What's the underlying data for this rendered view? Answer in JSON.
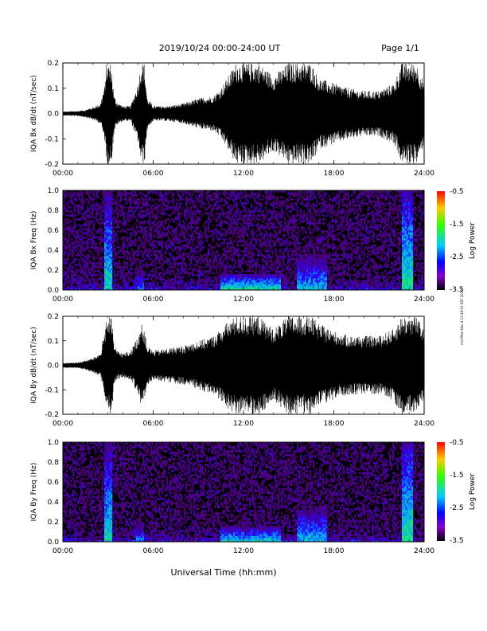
{
  "header": {
    "date_range": "2019/10/24  00:00-24:00 UT",
    "page": "Page 1/1"
  },
  "x_axis_title": "Universal Time (hh:mm)",
  "x_ticks": [
    "00:00",
    "06:00",
    "12:00",
    "18:00",
    "24:00"
  ],
  "side_note": "mdl Mon Nov 4 13:16:01 EST 2019",
  "colorbar": {
    "label": "Log Power",
    "ticks": [
      "-0.5",
      "-1.5",
      "-2.5",
      "-3.5"
    ],
    "colors": [
      "#ff0000",
      "#ffcc00",
      "#33ff00",
      "#00ccff",
      "#0000ff",
      "#8800cc",
      "#000000"
    ]
  },
  "chart_data": [
    {
      "type": "line",
      "ylabel": "IQA Bx dB/dt (nT/sec)",
      "x_range_hours": [
        0,
        24
      ],
      "ylim": [
        -0.2,
        0.2
      ],
      "y_ticks": [
        "0.2",
        "0.1",
        "0.0",
        "-0.1",
        "-0.2"
      ],
      "envelope": {
        "hours": [
          0,
          1,
          1.5,
          2,
          2.5,
          2.8,
          2.9,
          3.0,
          3.2,
          3.4,
          3.6,
          4.0,
          4.5,
          5.0,
          5.2,
          5.4,
          5.6,
          6.0,
          7.0,
          8.0,
          9.0,
          10.0,
          10.5,
          11.0,
          11.5,
          12.0,
          13.0,
          14.0,
          15.0,
          16.0,
          16.5,
          17.0,
          18.0,
          19.0,
          20.0,
          21.0,
          22.0,
          22.5,
          22.8,
          23.0,
          23.5,
          24.0
        ],
        "amplitude": [
          0.008,
          0.01,
          0.015,
          0.025,
          0.04,
          0.12,
          0.2,
          0.2,
          0.2,
          0.07,
          0.045,
          0.03,
          0.03,
          0.12,
          0.2,
          0.2,
          0.06,
          0.03,
          0.03,
          0.04,
          0.06,
          0.07,
          0.1,
          0.15,
          0.2,
          0.2,
          0.2,
          0.15,
          0.2,
          0.2,
          0.2,
          0.14,
          0.12,
          0.1,
          0.09,
          0.09,
          0.12,
          0.2,
          0.2,
          0.2,
          0.2,
          0.12
        ]
      }
    },
    {
      "type": "heatmap",
      "ylabel": "IQA Bx Freq (Hz)",
      "x_range_hours": [
        0,
        24
      ],
      "ylim": [
        0,
        1.0
      ],
      "y_ticks": [
        "1.0",
        "0.8",
        "0.6",
        "0.4",
        "0.2",
        "0.0"
      ],
      "zlabel": "Log Power",
      "zlim": [
        -3.5,
        -0.5
      ],
      "features": [
        {
          "hours": [
            2.8,
            3.3
          ],
          "freq_max": 1.0,
          "log_power": -2.3
        },
        {
          "hours": [
            4.8,
            5.4
          ],
          "freq_max": 0.25,
          "log_power": -2.6
        },
        {
          "hours": [
            10.5,
            14.5
          ],
          "freq_max": 0.15,
          "log_power": -2.2
        },
        {
          "hours": [
            15.5,
            17.5
          ],
          "freq_max": 0.35,
          "log_power": -2.4
        },
        {
          "hours": [
            22.5,
            23.3
          ],
          "freq_max": 1.0,
          "log_power": -2.2
        }
      ]
    },
    {
      "type": "line",
      "ylabel": "IQA By dB/dt (nT/sec)",
      "x_range_hours": [
        0,
        24
      ],
      "ylim": [
        -0.2,
        0.2
      ],
      "y_ticks": [
        "0.2",
        "0.1",
        "0.0",
        "-0.1",
        "-0.2"
      ],
      "envelope": {
        "hours": [
          0,
          1,
          1.5,
          2,
          2.5,
          2.8,
          2.9,
          3.0,
          3.2,
          3.4,
          3.6,
          4.0,
          4.5,
          5.0,
          5.2,
          5.4,
          5.6,
          6.0,
          7.0,
          8.0,
          9.0,
          10.0,
          10.5,
          11.0,
          11.5,
          12.0,
          13.0,
          14.0,
          15.0,
          16.0,
          16.5,
          17.0,
          18.0,
          19.0,
          20.0,
          21.0,
          22.0,
          22.5,
          22.8,
          23.0,
          23.5,
          24.0
        ],
        "amplitude": [
          0.01,
          0.012,
          0.02,
          0.03,
          0.05,
          0.15,
          0.2,
          0.2,
          0.2,
          0.09,
          0.06,
          0.05,
          0.06,
          0.12,
          0.17,
          0.15,
          0.08,
          0.06,
          0.07,
          0.08,
          0.1,
          0.12,
          0.15,
          0.18,
          0.2,
          0.2,
          0.2,
          0.15,
          0.2,
          0.2,
          0.2,
          0.17,
          0.14,
          0.12,
          0.12,
          0.12,
          0.15,
          0.2,
          0.2,
          0.2,
          0.2,
          0.14
        ]
      }
    },
    {
      "type": "heatmap",
      "ylabel": "IQA By Freq (Hz)",
      "x_range_hours": [
        0,
        24
      ],
      "ylim": [
        0,
        1.0
      ],
      "y_ticks": [
        "1.0",
        "0.8",
        "0.6",
        "0.4",
        "0.2",
        "0.0"
      ],
      "zlabel": "Log Power",
      "zlim": [
        -3.5,
        -0.5
      ],
      "features": [
        {
          "hours": [
            2.8,
            3.3
          ],
          "freq_max": 1.0,
          "log_power": -2.3
        },
        {
          "hours": [
            4.8,
            5.4
          ],
          "freq_max": 0.25,
          "log_power": -2.6
        },
        {
          "hours": [
            10.5,
            14.5
          ],
          "freq_max": 0.15,
          "log_power": -2.3
        },
        {
          "hours": [
            15.5,
            17.5
          ],
          "freq_max": 0.35,
          "log_power": -2.4
        },
        {
          "hours": [
            22.5,
            23.3
          ],
          "freq_max": 1.0,
          "log_power": -2.2
        }
      ]
    }
  ]
}
